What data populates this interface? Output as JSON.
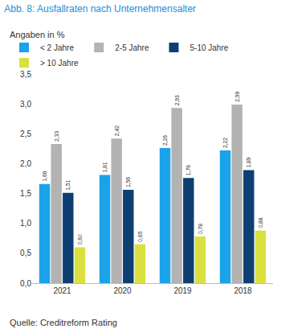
{
  "chart_data": {
    "type": "bar",
    "title": "Abb. 8: Ausfallraten nach Unternehmensalter",
    "subtitle": "Angaben in %",
    "annotations": [
      "Quelle: Creditreform Rating"
    ],
    "categories": [
      "2021",
      "2020",
      "2019",
      "2018"
    ],
    "series": [
      {
        "name": "< 2 Jahre",
        "color": "#1aa3e8",
        "values": [
          1.66,
          1.81,
          2.26,
          2.22
        ],
        "value_labels": [
          "1,66",
          "1,81",
          "2,26",
          "2,22"
        ]
      },
      {
        "name": "2-5 Jahre",
        "color": "#b3b3b3",
        "values": [
          2.33,
          2.42,
          2.93,
          2.99
        ],
        "value_labels": [
          "2,33",
          "2,42",
          "2,93",
          "2,99"
        ]
      },
      {
        "name": "5-10 Jahre",
        "color": "#0d3f73",
        "values": [
          1.51,
          1.56,
          1.76,
          1.89
        ],
        "value_labels": [
          "1,51",
          "1,56",
          "1,76",
          "1,89"
        ]
      },
      {
        "name": "> 10 Jahre",
        "color": "#d9e03f",
        "values": [
          0.6,
          0.65,
          0.78,
          0.88
        ],
        "value_labels": [
          "0,60",
          "0,65",
          "0,78",
          "0,88"
        ]
      }
    ],
    "ylim": [
      0,
      3.5
    ],
    "yticks": [
      {
        "value": 0,
        "label": "0,0"
      },
      {
        "value": 0.5,
        "label": "0,5"
      },
      {
        "value": 1,
        "label": "1,0"
      },
      {
        "value": 1.5,
        "label": "1,5"
      },
      {
        "value": 2,
        "label": "2,0"
      },
      {
        "value": 2.5,
        "label": "2,5"
      },
      {
        "value": 3,
        "label": "3,0"
      },
      {
        "value": 3.5,
        "label": "3,5"
      }
    ],
    "grid": false,
    "legend": "top",
    "data_labels": true
  }
}
